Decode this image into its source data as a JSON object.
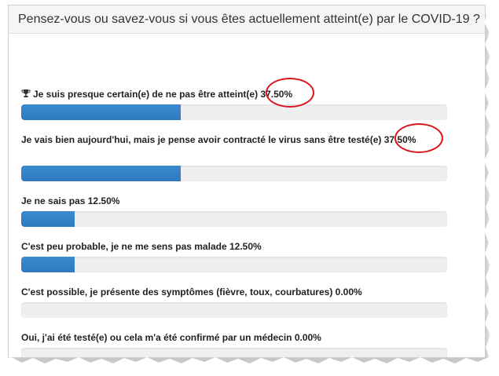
{
  "header": {
    "title": "Pensez-vous ou savez-vous si vous êtes actuellement atteint(e) par le COVID-19 ?"
  },
  "poll": {
    "options": [
      {
        "label": "Je suis presque certain(e) de ne pas être atteint(e)",
        "percent_text": "37.50%",
        "fraction": 0.375,
        "winner": true,
        "highlighted": true
      },
      {
        "label": "Je vais bien aujourd'hui, mais je pense avoir contracté le virus sans être testé(e)",
        "percent_text": "37.50%",
        "fraction": 0.375,
        "winner": false,
        "highlighted": true
      },
      {
        "label": "Je ne sais pas",
        "percent_text": "12.50%",
        "fraction": 0.125,
        "winner": false,
        "highlighted": false
      },
      {
        "label": "C'est peu probable, je ne me sens pas malade",
        "percent_text": "12.50%",
        "fraction": 0.125,
        "winner": false,
        "highlighted": false
      },
      {
        "label": "C'est possible, je présente des symptômes (fièvre, toux, courbatures)",
        "percent_text": "0.00%",
        "fraction": 0.0,
        "winner": false,
        "highlighted": false
      },
      {
        "label": "Oui, j'ai été testé(e) ou cela m'a été confirmé par un médecin",
        "percent_text": "0.00%",
        "fraction": 0.0,
        "winner": false,
        "highlighted": false
      }
    ]
  },
  "colors": {
    "bar_fill": "#2f79c0",
    "highlight_circle": "#d9141a",
    "header_bg": "#f5f5f5"
  },
  "icons": {
    "winner": "trophy-icon"
  }
}
